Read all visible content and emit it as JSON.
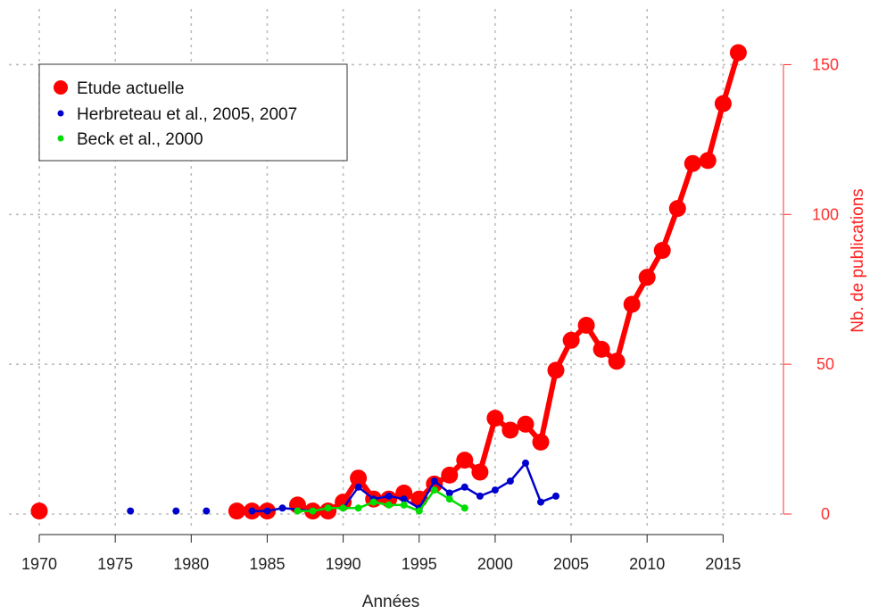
{
  "chart_data": {
    "type": "line",
    "title": "",
    "xlabel": "Années",
    "ylabel": "Nb. de publications",
    "xlim": [
      1970,
      2019
    ],
    "ylim": [
      -6,
      156
    ],
    "xticks": [
      1970,
      1975,
      1980,
      1985,
      1990,
      1995,
      2000,
      2005,
      2010,
      2015
    ],
    "yticks": [
      0,
      50,
      100,
      150
    ],
    "grid": true,
    "legend_position": "top-left",
    "y_axis_side": "right",
    "y_axis_color": "#ff3030",
    "series": [
      {
        "name": "Etude actuelle",
        "color": "#ff0000",
        "x": [
          1970,
          1983,
          1984,
          1985,
          1987,
          1988,
          1989,
          1990,
          1991,
          1992,
          1993,
          1994,
          1995,
          1996,
          1997,
          1998,
          1999,
          2000,
          2001,
          2002,
          2003,
          2004,
          2005,
          2006,
          2007,
          2008,
          2009,
          2010,
          2011,
          2012,
          2013,
          2014,
          2015,
          2016
        ],
        "y": [
          1,
          1,
          1,
          1,
          3,
          1,
          1,
          4,
          12,
          5,
          5,
          7,
          5,
          10,
          13,
          18,
          14,
          32,
          28,
          30,
          24,
          48,
          58,
          63,
          55,
          51,
          70,
          79,
          88,
          102,
          117,
          118,
          137,
          154
        ],
        "connected_from_index": 6
      },
      {
        "name": "Herbreteau et al., 2005, 2007",
        "color": "#0000cc",
        "x": [
          1976,
          1979,
          1981,
          1984,
          1985,
          1986,
          1988,
          1989,
          1990,
          1991,
          1992,
          1993,
          1994,
          1995,
          1996,
          1997,
          1998,
          1999,
          2000,
          2001,
          2002,
          2003,
          2004
        ],
        "y": [
          1,
          1,
          1,
          1,
          1,
          2,
          1,
          2,
          2,
          9,
          5,
          6,
          5,
          2,
          11,
          7,
          9,
          6,
          8,
          11,
          17,
          4,
          6
        ],
        "connected_from_index": 3
      },
      {
        "name": "Beck et al., 2000",
        "color": "#00dd00",
        "x": [
          1987,
          1988,
          1989,
          1990,
          1991,
          1992,
          1993,
          1994,
          1995,
          1996,
          1997,
          1998
        ],
        "y": [
          1,
          1,
          2,
          2,
          2,
          4,
          3,
          3,
          1,
          8,
          5,
          2
        ],
        "connected_from_index": 0
      }
    ]
  }
}
